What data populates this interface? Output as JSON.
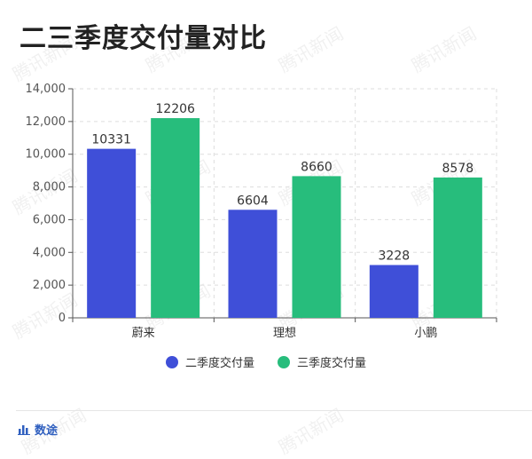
{
  "page": {
    "title": "二三季度交付量对比",
    "source_label": "数途",
    "watermark": "腾讯新闻"
  },
  "colors": {
    "series_q2": "#3f4fd8",
    "series_q3": "#27bd7c",
    "axis": "#555555",
    "grid": "#dddddd"
  },
  "chart_data": {
    "type": "bar",
    "title": "二三季度交付量对比",
    "categories": [
      "蔚来",
      "理想",
      "小鹏"
    ],
    "series": [
      {
        "name": "二季度交付量",
        "values": [
          10331,
          6604,
          3228
        ]
      },
      {
        "name": "三季度交付量",
        "values": [
          12206,
          8660,
          8578
        ]
      }
    ],
    "ylim": [
      0,
      14000
    ],
    "yticks": [
      "0",
      "2,000",
      "4,000",
      "6,000",
      "8,000",
      "10,000",
      "12,000",
      "14,000"
    ],
    "ytick_values": [
      0,
      2000,
      4000,
      6000,
      8000,
      10000,
      12000,
      14000
    ],
    "grid": true,
    "legend": "bottom-center",
    "data_labels": true
  }
}
